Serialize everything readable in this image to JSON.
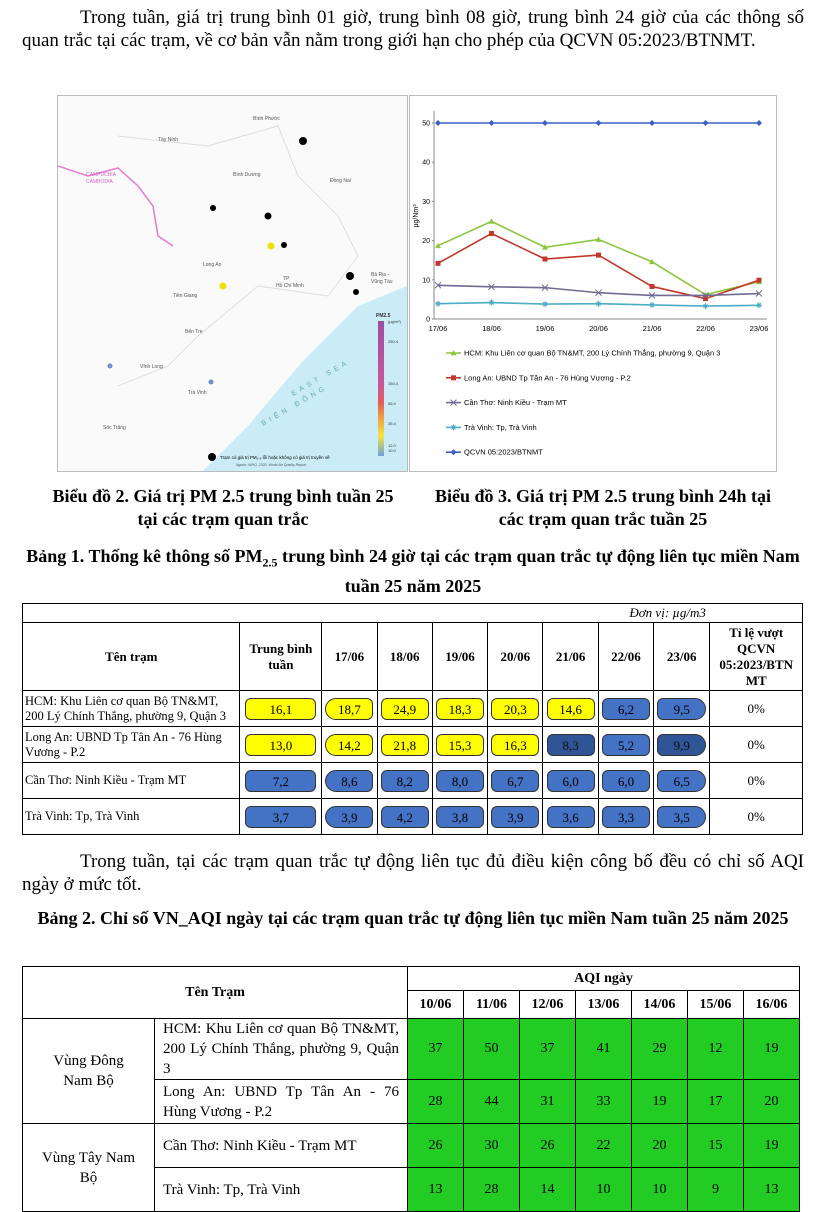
{
  "intro": "Trong tuần, giá trị trung bình 01 giờ, trung bình 08 giờ, trung bình 24 giờ của các thông số quan trắc tại các trạm, về cơ bản vẫn nằm trong giới hạn cho phép của QCVN 05:2023/BTNMT.",
  "map": {
    "labels": [
      "Bình Phước",
      "Tây Ninh",
      "CAMPUCHIA",
      "CAMBODIA",
      "Bình Dương",
      "Đồng Nai",
      "Long An",
      "TP",
      "Hồ Chí Minh",
      "Bà Rịa -",
      "Vũng Tàu",
      "Tiền Giang",
      "Bến Tre",
      "Vĩnh Long",
      "Trà Vinh",
      "Sóc Trăng",
      "BIỂN ĐÔNG",
      "EAST SEA"
    ],
    "legend_title": "PM2.5",
    "legend_unit": "(µg/m³)",
    "legend_ticks": [
      "250.4",
      "150.4",
      "55.4",
      "35.4",
      "12.0",
      "10.0"
    ],
    "note": "Trạm có giá trị PM₂.₅ lỗi hoặc không có giá trị truyền về",
    "source": "Nguồn: WHO, 2020, World Air Quality Report"
  },
  "chart_data": {
    "type": "line",
    "y_label": "µg/Nm³",
    "categories": [
      "17/06",
      "18/06",
      "19/06",
      "20/06",
      "21/06",
      "22/06",
      "23/06"
    ],
    "ylim": [
      0,
      50
    ],
    "yticks": [
      0,
      10,
      20,
      30,
      40,
      50
    ],
    "grid": false,
    "series": [
      {
        "name": "HCM: Khu Liên cơ quan Bộ TN&MT, 200 Lý Chính Thắng, phường 9, Quận 3",
        "color": "#8cc63f",
        "marker": "triangle",
        "values": [
          18.7,
          24.9,
          18.3,
          20.3,
          14.6,
          6.2,
          9.5
        ]
      },
      {
        "name": "Long An: UBND Tp Tân An - 76 Hùng Vương - P.2",
        "color": "#c0392b",
        "marker": "square",
        "values": [
          14.2,
          21.8,
          15.3,
          16.3,
          8.3,
          5.2,
          9.9
        ]
      },
      {
        "name": "Cần Thơ: Ninh Kiều - Trạm MT",
        "color": "#6f6b92",
        "marker": "x",
        "values": [
          8.6,
          8.2,
          8.0,
          6.7,
          6.0,
          6.0,
          6.5
        ]
      },
      {
        "name": "Trà Vinh: Tp, Trà Vinh",
        "color": "#4bacc6",
        "marker": "star",
        "values": [
          3.9,
          4.2,
          3.8,
          3.9,
          3.6,
          3.3,
          3.5
        ]
      },
      {
        "name": "QCVN 05:2023/BTNMT",
        "color": "#3a62c4",
        "marker": "diamond",
        "values": [
          50,
          50,
          50,
          50,
          50,
          50,
          50
        ]
      }
    ]
  },
  "captions": [
    "Biểu đồ 2. Giá trị PM 2.5 trung bình tuần 25 tại các trạm quan trắc",
    "Biểu đồ 3. Giá trị PM 2.5 trung bình 24h tại các trạm quan trắc tuần 25"
  ],
  "table1": {
    "title_parts": [
      "Bảng 1. Thống kê thông số PM",
      "2.5",
      " trung bình 24 giờ tại các trạm quan trắc tự động liên tục miền Nam tuần 25 năm 2025"
    ],
    "unit": "Đơn vị: µg/m3",
    "header": [
      "Tên trạm",
      "Trung bình tuần",
      "17/06",
      "18/06",
      "19/06",
      "20/06",
      "21/06",
      "22/06",
      "23/06",
      "Tỉ lệ vượt QCVN 05:2023/BTN MT"
    ],
    "rows": [
      {
        "cells": [
          "HCM: Khu Liên cơ quan Bộ TN&MT, 200 Lý Chính Thắng, phường 9, Quận 3",
          "16,1",
          "18,7",
          "24,9",
          "18,3",
          "20,3",
          "14,6",
          "6,2",
          "9,5",
          "0%"
        ],
        "fills": [
          "#ffff00",
          "#ffff00",
          "#ffff00",
          "#ffff00",
          "#ffff00",
          "#ffff00",
          "#4472c4",
          "#4472c4"
        ]
      },
      {
        "cells": [
          "Long An: UBND Tp Tân An - 76 Hùng Vương - P.2",
          "13,0",
          "14,2",
          "21,8",
          "15,3",
          "16,3",
          "8,3",
          "5,2",
          "9,9",
          "0%"
        ],
        "fills": [
          "#ffff00",
          "#ffff00",
          "#ffff00",
          "#ffff00",
          "#ffff00",
          "#2f5597",
          "#4472c4",
          "#2f5597"
        ]
      },
      {
        "cells": [
          "Cần Thơ: Ninh Kiều - Trạm MT",
          "7,2",
          "8,6",
          "8,2",
          "8,0",
          "6,7",
          "6,0",
          "6,0",
          "6,5",
          "0%"
        ],
        "fills": [
          "#4472c4",
          "#4472c4",
          "#4472c4",
          "#4472c4",
          "#4472c4",
          "#4472c4",
          "#4472c4",
          "#4472c4"
        ]
      },
      {
        "cells": [
          "Trà Vinh: Tp, Trà Vinh",
          "3,7",
          "3,9",
          "4,2",
          "3,8",
          "3,9",
          "3,6",
          "3,3",
          "3,5",
          "0%"
        ],
        "fills": [
          "#4472c4",
          "#4472c4",
          "#4472c4",
          "#4472c4",
          "#4472c4",
          "#4472c4",
          "#4472c4",
          "#4472c4"
        ]
      }
    ]
  },
  "paragraph2": "Trong tuần, tại các trạm quan trắc tự động liên tục đủ điều kiện công bố đều có chỉ số AQI ngày ở mức tốt.",
  "table2": {
    "title": "Bảng 2. Chỉ số VN_AQI ngày tại các trạm quan trắc tự động liên tục miền Nam tuần 25 năm 2025",
    "header_station": "Tên Trạm",
    "header_group": "AQI ngày",
    "dates": [
      "10/06",
      "11/06",
      "12/06",
      "13/06",
      "14/06",
      "15/06",
      "16/06"
    ],
    "fill": "#22cc22",
    "regions": [
      {
        "name": "Vùng Đông Nam Bộ",
        "stations": [
          {
            "name": "HCM: Khu Liên cơ quan Bộ TN&MT, 200 Lý Chính Thắng, phường 9, Quận 3",
            "values": [
              37,
              50,
              37,
              41,
              29,
              12,
              19
            ]
          },
          {
            "name": "Long An: UBND Tp Tân An - 76 Hùng Vương - P.2",
            "values": [
              28,
              44,
              31,
              33,
              19,
              17,
              20
            ]
          }
        ]
      },
      {
        "name": "Vùng Tây Nam Bộ",
        "stations": [
          {
            "name": "Cần Thơ: Ninh Kiều - Trạm MT",
            "values": [
              26,
              30,
              26,
              22,
              20,
              15,
              19
            ]
          },
          {
            "name": "Trà Vinh: Tp, Trà Vinh",
            "values": [
              13,
              28,
              14,
              10,
              10,
              9,
              13
            ]
          }
        ]
      }
    ]
  }
}
